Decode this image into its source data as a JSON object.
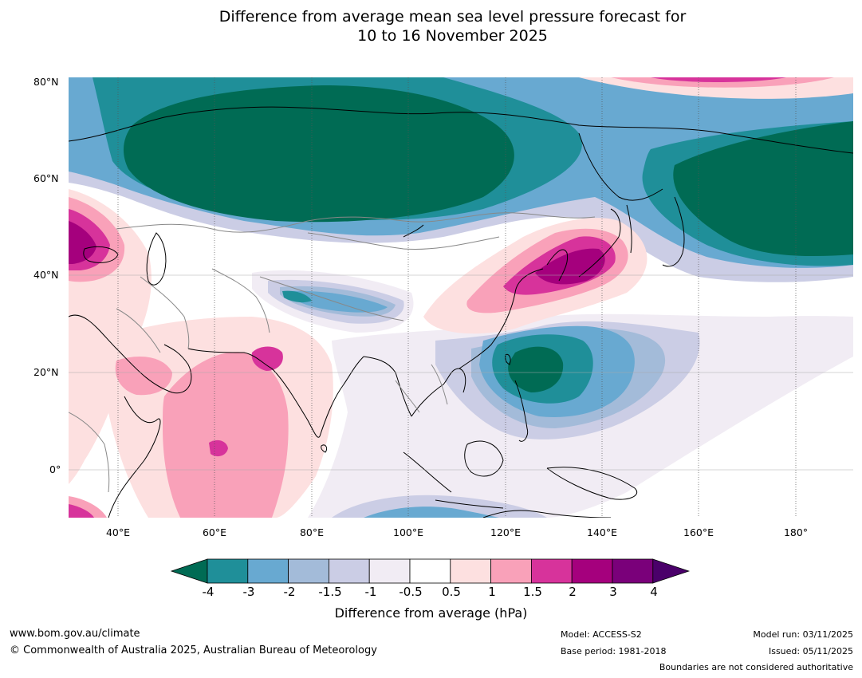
{
  "title": {
    "line1": "Difference from average mean sea level pressure forecast for",
    "line2": "10 to 16 November 2025"
  },
  "map": {
    "lat_labels": [
      "80°N",
      "60°N",
      "40°N",
      "20°N",
      "0°"
    ],
    "lon_labels": [
      "40°E",
      "60°E",
      "80°E",
      "100°E",
      "120°E",
      "140°E",
      "160°E",
      "180°"
    ],
    "extent": {
      "lon": [
        30,
        191
      ],
      "lat": [
        -10,
        80
      ]
    },
    "anomaly_regions": [
      {
        "name": "siberia-high-core",
        "level": "-4",
        "color": "#006b54"
      },
      {
        "name": "north-pacific-low-core",
        "level": "-4",
        "color": "#006b54"
      },
      {
        "name": "philippine-sea-low",
        "level": "-4",
        "color": "#006b54"
      },
      {
        "name": "japan-high",
        "level": "3",
        "color": "#a5007d"
      },
      {
        "name": "europe-high",
        "level": "3",
        "color": "#a5007d"
      },
      {
        "name": "arabian-sea-high",
        "level": "1.5",
        "color": "#d7339b"
      },
      {
        "name": "indian-ocean-high",
        "level": "1",
        "color": "#f9a1b9"
      },
      {
        "name": "arctic-high",
        "level": "2",
        "color": "#d7339b"
      }
    ]
  },
  "colorbar": {
    "colors": [
      "#006b54",
      "#1f8f99",
      "#68a9d1",
      "#a3bbd9",
      "#cbcde5",
      "#f1ecf4",
      "#ffffff",
      "#fde0e0",
      "#f9a1b9",
      "#d7339b",
      "#a5007d",
      "#7a007a",
      "#4a006a"
    ],
    "ticks": [
      "-4",
      "-3",
      "-2",
      "-1.5",
      "-1",
      "-0.5",
      "0.5",
      "1",
      "1.5",
      "2",
      "3",
      "4"
    ],
    "label": "Difference from average (hPa)"
  },
  "footer": {
    "website": "www.bom.gov.au/climate",
    "copyright": "© Commonwealth of Australia 2025, Australian Bureau of Meteorology",
    "model": "Model: ACCESS-S2",
    "base_period": "Base period: 1981-2018",
    "model_run": "Model run: 03/11/2025",
    "issued": "Issued: 05/11/2025",
    "disclaimer": "Boundaries are not considered authoritative"
  }
}
